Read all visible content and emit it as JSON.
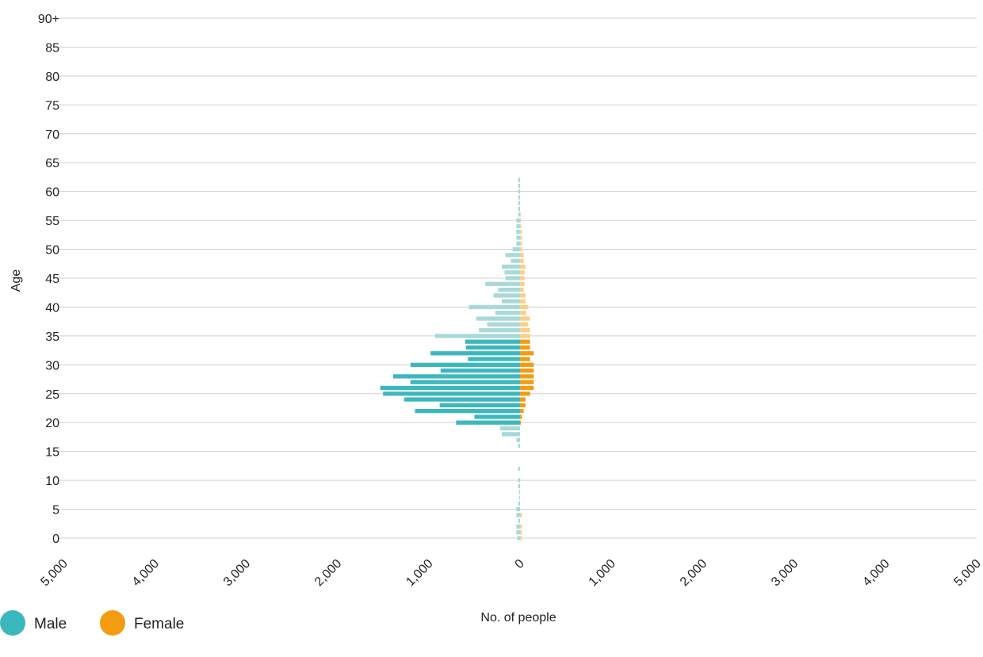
{
  "chart_data": {
    "type": "bar",
    "orientation": "horizontal",
    "subtype": "population-pyramid",
    "xlabel": "No. of people",
    "ylabel": "Age",
    "xlim": [
      -5000,
      5000
    ],
    "ylim": [
      0,
      90
    ],
    "x_ticks": [
      {
        "value": -5000,
        "label": "5,000"
      },
      {
        "value": -4000,
        "label": "4,000"
      },
      {
        "value": -3000,
        "label": "3,000"
      },
      {
        "value": -2000,
        "label": "2,000"
      },
      {
        "value": -1000,
        "label": "1,000"
      },
      {
        "value": 0,
        "label": "0"
      },
      {
        "value": 1000,
        "label": "1,000"
      },
      {
        "value": 2000,
        "label": "2,000"
      },
      {
        "value": 3000,
        "label": "3,000"
      },
      {
        "value": 4000,
        "label": "4,000"
      },
      {
        "value": 5000,
        "label": "5,000"
      }
    ],
    "y_ticks": [
      {
        "value": 0,
        "label": "0"
      },
      {
        "value": 5,
        "label": "5"
      },
      {
        "value": 10,
        "label": "10"
      },
      {
        "value": 15,
        "label": "15"
      },
      {
        "value": 20,
        "label": "20"
      },
      {
        "value": 25,
        "label": "25"
      },
      {
        "value": 30,
        "label": "30"
      },
      {
        "value": 35,
        "label": "35"
      },
      {
        "value": 40,
        "label": "40"
      },
      {
        "value": 45,
        "label": "45"
      },
      {
        "value": 50,
        "label": "50"
      },
      {
        "value": 55,
        "label": "55"
      },
      {
        "value": 60,
        "label": "60"
      },
      {
        "value": 65,
        "label": "65"
      },
      {
        "value": 70,
        "label": "70"
      },
      {
        "value": 75,
        "label": "75"
      },
      {
        "value": 80,
        "label": "80"
      },
      {
        "value": 85,
        "label": "85"
      },
      {
        "value": 90,
        "label": "90+"
      }
    ],
    "grid": true,
    "legend_position": "bottom-left",
    "highlight_age_range": [
      20,
      34
    ],
    "ages": [
      0,
      1,
      2,
      3,
      4,
      5,
      6,
      7,
      8,
      9,
      10,
      11,
      12,
      13,
      14,
      15,
      16,
      17,
      18,
      19,
      20,
      21,
      22,
      23,
      24,
      25,
      26,
      27,
      28,
      29,
      30,
      31,
      32,
      33,
      34,
      35,
      36,
      37,
      38,
      39,
      40,
      41,
      42,
      43,
      44,
      45,
      46,
      47,
      48,
      49,
      50,
      51,
      52,
      53,
      54,
      55,
      56,
      57,
      58,
      59,
      60,
      61,
      62
    ],
    "series": [
      {
        "name": "Male",
        "color": "#3bb8be",
        "light_color": "#a8d9d8",
        "values": [
          30,
          40,
          40,
          20,
          40,
          40,
          20,
          10,
          10,
          20,
          20,
          0,
          20,
          0,
          0,
          0,
          20,
          40,
          200,
          220,
          700,
          500,
          1150,
          880,
          1270,
          1500,
          1530,
          1200,
          1390,
          870,
          1200,
          570,
          980,
          590,
          600,
          930,
          450,
          360,
          480,
          270,
          560,
          200,
          290,
          240,
          380,
          160,
          170,
          200,
          100,
          160,
          80,
          40,
          40,
          40,
          40,
          40,
          20,
          20,
          20,
          20,
          20,
          20,
          20
        ],
        "female_note": ""
      },
      {
        "name": "Female",
        "color": "#f39c12",
        "light_color": "#f9cf8a",
        "values": [
          20,
          20,
          20,
          0,
          20,
          0,
          0,
          0,
          0,
          0,
          0,
          0,
          0,
          0,
          0,
          0,
          0,
          0,
          0,
          0,
          10,
          20,
          40,
          60,
          60,
          110,
          150,
          150,
          150,
          150,
          150,
          110,
          150,
          110,
          110,
          110,
          110,
          90,
          110,
          70,
          90,
          60,
          60,
          40,
          50,
          50,
          50,
          60,
          40,
          40,
          20,
          20,
          20,
          20,
          10,
          10,
          10,
          0,
          0,
          0,
          0,
          0,
          0
        ]
      }
    ]
  }
}
